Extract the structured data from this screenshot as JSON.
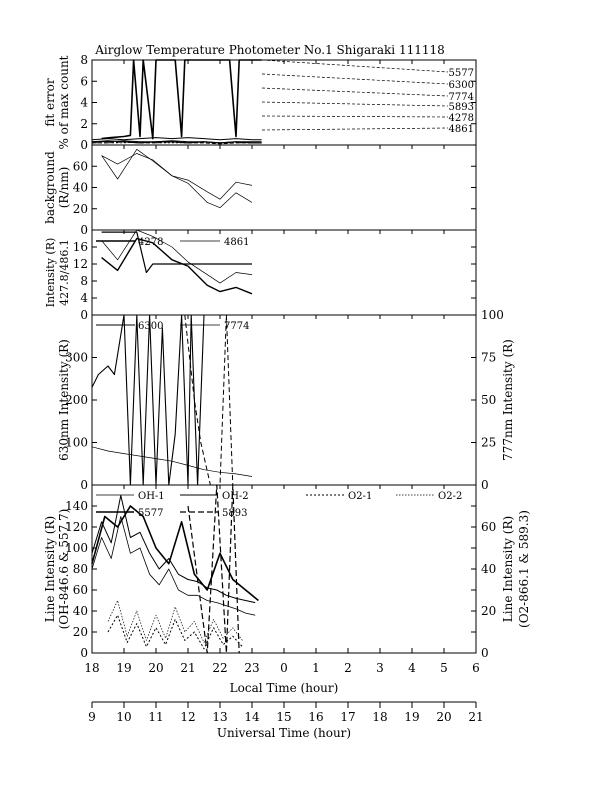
{
  "chart_data": [
    {
      "type": "line",
      "title": "Airglow Temperature Photometer No.1  Shigaraki   111118",
      "ylabel": "fit error\n% of max count",
      "ylim": [
        0,
        8
      ],
      "yticks": [
        0,
        2,
        4,
        6,
        8
      ],
      "legend_placement": "right",
      "series": [
        {
          "name": "5577",
          "x": [
            18.3,
            18.6,
            19.0,
            19.2,
            19.3,
            19.5,
            19.6,
            19.9,
            20.0,
            20.2,
            20.6,
            20.8,
            20.9,
            21.4,
            22.1,
            22.3,
            22.5,
            22.6,
            22.7,
            23.3
          ],
          "values": [
            0.6,
            0.7,
            0.8,
            0.9,
            8.0,
            0.8,
            8.0,
            0.6,
            8.0,
            8.0,
            8.0,
            0.8,
            8.0,
            8.0,
            8.0,
            8.0,
            0.8,
            8.0,
            8.0,
            8.0
          ]
        },
        {
          "name": "6300",
          "x": [
            18.0,
            18.5,
            19.0,
            19.5,
            20.0,
            20.5,
            21.0,
            21.5,
            22.0,
            22.5,
            23.0,
            23.3
          ],
          "values": [
            0.5,
            0.6,
            0.5,
            0.6,
            0.7,
            0.6,
            0.7,
            0.6,
            0.5,
            0.6,
            0.5,
            0.5
          ]
        },
        {
          "name": "7774",
          "x": [
            18.0,
            18.5,
            19.0,
            19.5,
            20.0,
            20.5,
            21.0,
            21.5,
            22.0,
            22.5,
            23.0,
            23.3
          ],
          "values": [
            0.3,
            0.3,
            0.4,
            0.3,
            0.3,
            0.4,
            0.3,
            0.3,
            0.2,
            0.3,
            0.3,
            0.3
          ]
        },
        {
          "name": "5893",
          "x": [
            18.0,
            18.5,
            19.0,
            19.5,
            20.0,
            20.5,
            21.0,
            21.5,
            22.0,
            22.5,
            23.0,
            23.3
          ],
          "values": [
            0.2,
            0.2,
            0.3,
            0.2,
            0.2,
            0.3,
            0.2,
            0.2,
            0.1,
            0.2,
            0.2,
            0.2
          ]
        },
        {
          "name": "4278",
          "x": [
            18.0,
            18.5,
            19.0,
            19.5,
            20.0,
            20.5,
            21.0,
            21.5,
            22.0,
            22.5,
            23.0,
            23.3
          ],
          "values": [
            0.3,
            0.4,
            0.3,
            0.2,
            0.3,
            0.3,
            0.2,
            0.3,
            0.2,
            0.3,
            0.2,
            0.2
          ]
        },
        {
          "name": "4861",
          "x": [
            18.0,
            18.5,
            19.0,
            19.5,
            20.0,
            20.5,
            21.0,
            21.5,
            22.0,
            22.5,
            23.0,
            23.3
          ],
          "values": [
            0.2,
            0.2,
            0.2,
            0.3,
            0.2,
            0.2,
            0.2,
            0.3,
            0.2,
            0.2,
            0.2,
            0.2
          ]
        }
      ]
    },
    {
      "type": "line",
      "ylabel": "background\n(R/nm)",
      "ylim": [
        0,
        80
      ],
      "yticks": [
        0,
        20,
        40,
        60
      ],
      "series": [
        {
          "name": "upper",
          "x": [
            18.3,
            18.8,
            19.4,
            19.9,
            20.5,
            21.0,
            21.6,
            22.0,
            22.5,
            23.0
          ],
          "values": [
            70,
            48,
            76,
            65,
            51,
            47,
            36,
            29,
            45,
            42
          ]
        },
        {
          "name": "lower",
          "x": [
            18.3,
            18.8,
            19.4,
            19.9,
            20.5,
            21.0,
            21.6,
            22.0,
            22.5,
            23.0
          ],
          "values": [
            70,
            62,
            72,
            66,
            51,
            44,
            26,
            21,
            35,
            26
          ]
        }
      ]
    },
    {
      "type": "line",
      "ylabel": "Intensity (R)\n427.8/486.1",
      "ylim": [
        0,
        20
      ],
      "yticks": [
        0,
        4,
        8,
        12,
        16
      ],
      "legend_placement": "top",
      "series": [
        {
          "name": "4278",
          "x": [
            18.3,
            18.8,
            19.4,
            19.9,
            20.5,
            21.0,
            21.6,
            22.0,
            22.5,
            23.0
          ],
          "values": [
            13.5,
            10.5,
            18.0,
            17.0,
            13.0,
            11.5,
            7.0,
            5.5,
            6.5,
            5.0
          ]
        },
        {
          "name": "4861",
          "x": [
            18.3,
            18.8,
            19.4,
            19.9,
            20.5,
            21.0,
            21.6,
            22.0,
            22.5,
            23.0
          ],
          "values": [
            17.5,
            13.0,
            20.0,
            18.5,
            16.0,
            12.5,
            9.5,
            7.5,
            10.0,
            9.5
          ]
        },
        {
          "name": "",
          "x": [
            18.3,
            18.8,
            19.4,
            19.7,
            19.9,
            20.5,
            21.0,
            21.6,
            22.0,
            22.5,
            23.0
          ],
          "values": [
            19.5,
            19.5,
            19.5,
            10.0,
            12.0,
            12.0,
            12.0,
            12.0,
            12.0,
            12.0,
            12.0
          ]
        }
      ]
    },
    {
      "type": "line",
      "ylabel": "630nm Intensity (R)",
      "ylabel_right": "777nm Intensity (R)",
      "ylim": [
        0,
        400
      ],
      "ylim_right": [
        0,
        100
      ],
      "yticks": [
        0,
        100,
        200,
        300
      ],
      "yticks_right": [
        0,
        25,
        50,
        75,
        100
      ],
      "legend_placement": "top",
      "series": [
        {
          "name": "6300",
          "x": [
            18.0,
            18.2,
            18.5,
            18.7,
            19.0,
            19.2,
            19.4,
            19.6,
            19.8,
            20.0,
            20.2,
            20.4,
            20.6,
            20.8,
            21.0,
            21.1,
            21.3,
            21.5
          ],
          "values": [
            230,
            260,
            280,
            260,
            400,
            0,
            400,
            0,
            400,
            0,
            370,
            0,
            120,
            400,
            0,
            400,
            0,
            400
          ]
        },
        {
          "name": "7774",
          "x": [
            18.0,
            18.5,
            19.0,
            19.5,
            20.0,
            20.5,
            21.0,
            21.5,
            22.0,
            22.5,
            23.0
          ],
          "values": [
            22.5,
            20.0,
            18.5,
            17.0,
            15.5,
            14.0,
            11.5,
            9.0,
            7.5,
            6.5,
            5.0
          ]
        },
        {
          "name": "",
          "x": [
            20.9,
            21.2,
            21.4,
            21.7,
            22.0,
            22.2,
            22.4,
            22.6
          ],
          "values": [
            400,
            200,
            100,
            0,
            0,
            400,
            0,
            0
          ]
        }
      ]
    },
    {
      "type": "line",
      "ylabel": "Line Intensity (R)\n(OH-846.6 & 557.7)",
      "ylabel_right": "Line Intensity (R)\n(O2-866.1 & 589.3)",
      "ylim": [
        0,
        160
      ],
      "ylim_right": [
        0,
        80
      ],
      "yticks": [
        0,
        20,
        40,
        60,
        80,
        100,
        120,
        140
      ],
      "yticks_right": [
        0,
        20,
        40,
        60
      ],
      "legend_placement": "top",
      "series": [
        {
          "name": "OH-1",
          "x": [
            18.0,
            18.3,
            18.6,
            18.9,
            19.2,
            19.5,
            19.8,
            20.1,
            20.4,
            20.7,
            21.0,
            21.3,
            21.6,
            21.9,
            22.2,
            22.5,
            22.8,
            23.1
          ],
          "values": [
            80,
            110,
            90,
            130,
            95,
            100,
            75,
            65,
            80,
            60,
            55,
            55,
            50,
            48,
            45,
            42,
            38,
            36
          ]
        },
        {
          "name": "OH-2",
          "x": [
            18.0,
            18.3,
            18.6,
            18.9,
            19.2,
            19.5,
            19.8,
            20.1,
            20.4,
            20.7,
            21.0,
            21.3,
            21.6,
            21.9,
            22.2,
            22.5,
            22.8,
            23.1
          ],
          "values": [
            95,
            125,
            105,
            150,
            110,
            115,
            95,
            80,
            90,
            75,
            70,
            68,
            62,
            60,
            55,
            52,
            50,
            48
          ]
        },
        {
          "name": "O2-1",
          "x": [
            18.5,
            18.8,
            19.1,
            19.4,
            19.7,
            20.0,
            20.3,
            20.6,
            20.9,
            21.2,
            21.5,
            21.8,
            22.1,
            22.4,
            22.7
          ],
          "values": [
            10,
            18,
            5,
            14,
            3,
            12,
            4,
            16,
            6,
            10,
            2,
            12,
            4,
            8,
            3
          ]
        },
        {
          "name": "O2-2",
          "x": [
            18.5,
            18.8,
            19.1,
            19.4,
            19.7,
            20.0,
            20.3,
            20.6,
            20.9,
            21.2,
            21.5,
            21.8,
            22.1,
            22.4,
            22.7
          ],
          "values": [
            15,
            25,
            8,
            20,
            6,
            18,
            7,
            22,
            10,
            15,
            5,
            16,
            7,
            12,
            6
          ]
        },
        {
          "name": "5577",
          "x": [
            18.0,
            18.4,
            18.8,
            19.2,
            19.6,
            20.0,
            20.4,
            20.8,
            21.2,
            21.6,
            22.0,
            22.4,
            22.8,
            23.2
          ],
          "values": [
            85,
            130,
            120,
            140,
            130,
            100,
            85,
            125,
            75,
            60,
            95,
            70,
            60,
            50
          ]
        },
        {
          "name": "5893",
          "x": [
            21.0,
            21.3,
            21.6,
            21.9,
            22.2,
            22.4,
            22.6
          ],
          "values": [
            140,
            70,
            0,
            160,
            0,
            160,
            0
          ]
        }
      ]
    }
  ],
  "x_axis_local": {
    "label": "Local Time (hour)",
    "ticks": [
      "18",
      "19",
      "20",
      "21",
      "22",
      "23",
      "0",
      "1",
      "2",
      "3",
      "4",
      "5",
      "6"
    ]
  },
  "x_axis_universal": {
    "label": "Universal Time (hour)",
    "ticks": [
      "9",
      "10",
      "11",
      "12",
      "13",
      "14",
      "15",
      "16",
      "17",
      "18",
      "19",
      "20",
      "21"
    ]
  },
  "legend_labels": {
    "panel1": [
      "5577",
      "6300",
      "7774",
      "5893",
      "4278",
      "4861"
    ],
    "panel3": [
      "4278",
      "4861"
    ],
    "panel4": [
      "6300",
      "7774"
    ],
    "panel5": [
      "OH-1",
      "OH-2",
      "O2-1",
      "O2-2",
      "5577",
      "5893"
    ]
  }
}
